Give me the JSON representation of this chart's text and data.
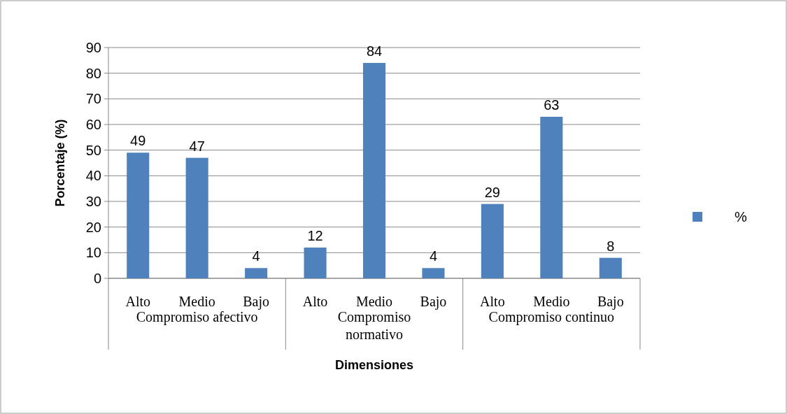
{
  "chart_data": {
    "type": "bar",
    "xlabel": "Dimensiones",
    "ylabel": "Porcentaje (%)",
    "categories": [
      "Alto",
      "Medio",
      "Bajo",
      "Alto",
      "Medio",
      "Bajo",
      "Alto",
      "Medio",
      "Bajo"
    ],
    "series": [
      {
        "name": "%",
        "color": "#4f81bd",
        "values": [
          49,
          47,
          4,
          12,
          84,
          4,
          29,
          63,
          8
        ]
      }
    ],
    "annotations": [
      "Compromiso afectivo",
      "Compromiso normativo",
      "Compromiso continuo"
    ],
    "ylim": [
      0,
      90
    ],
    "yticks": [
      0,
      10,
      20,
      30,
      40,
      50,
      60,
      70,
      80,
      90
    ],
    "grid": "y",
    "legend": "right",
    "data_labels": true
  }
}
